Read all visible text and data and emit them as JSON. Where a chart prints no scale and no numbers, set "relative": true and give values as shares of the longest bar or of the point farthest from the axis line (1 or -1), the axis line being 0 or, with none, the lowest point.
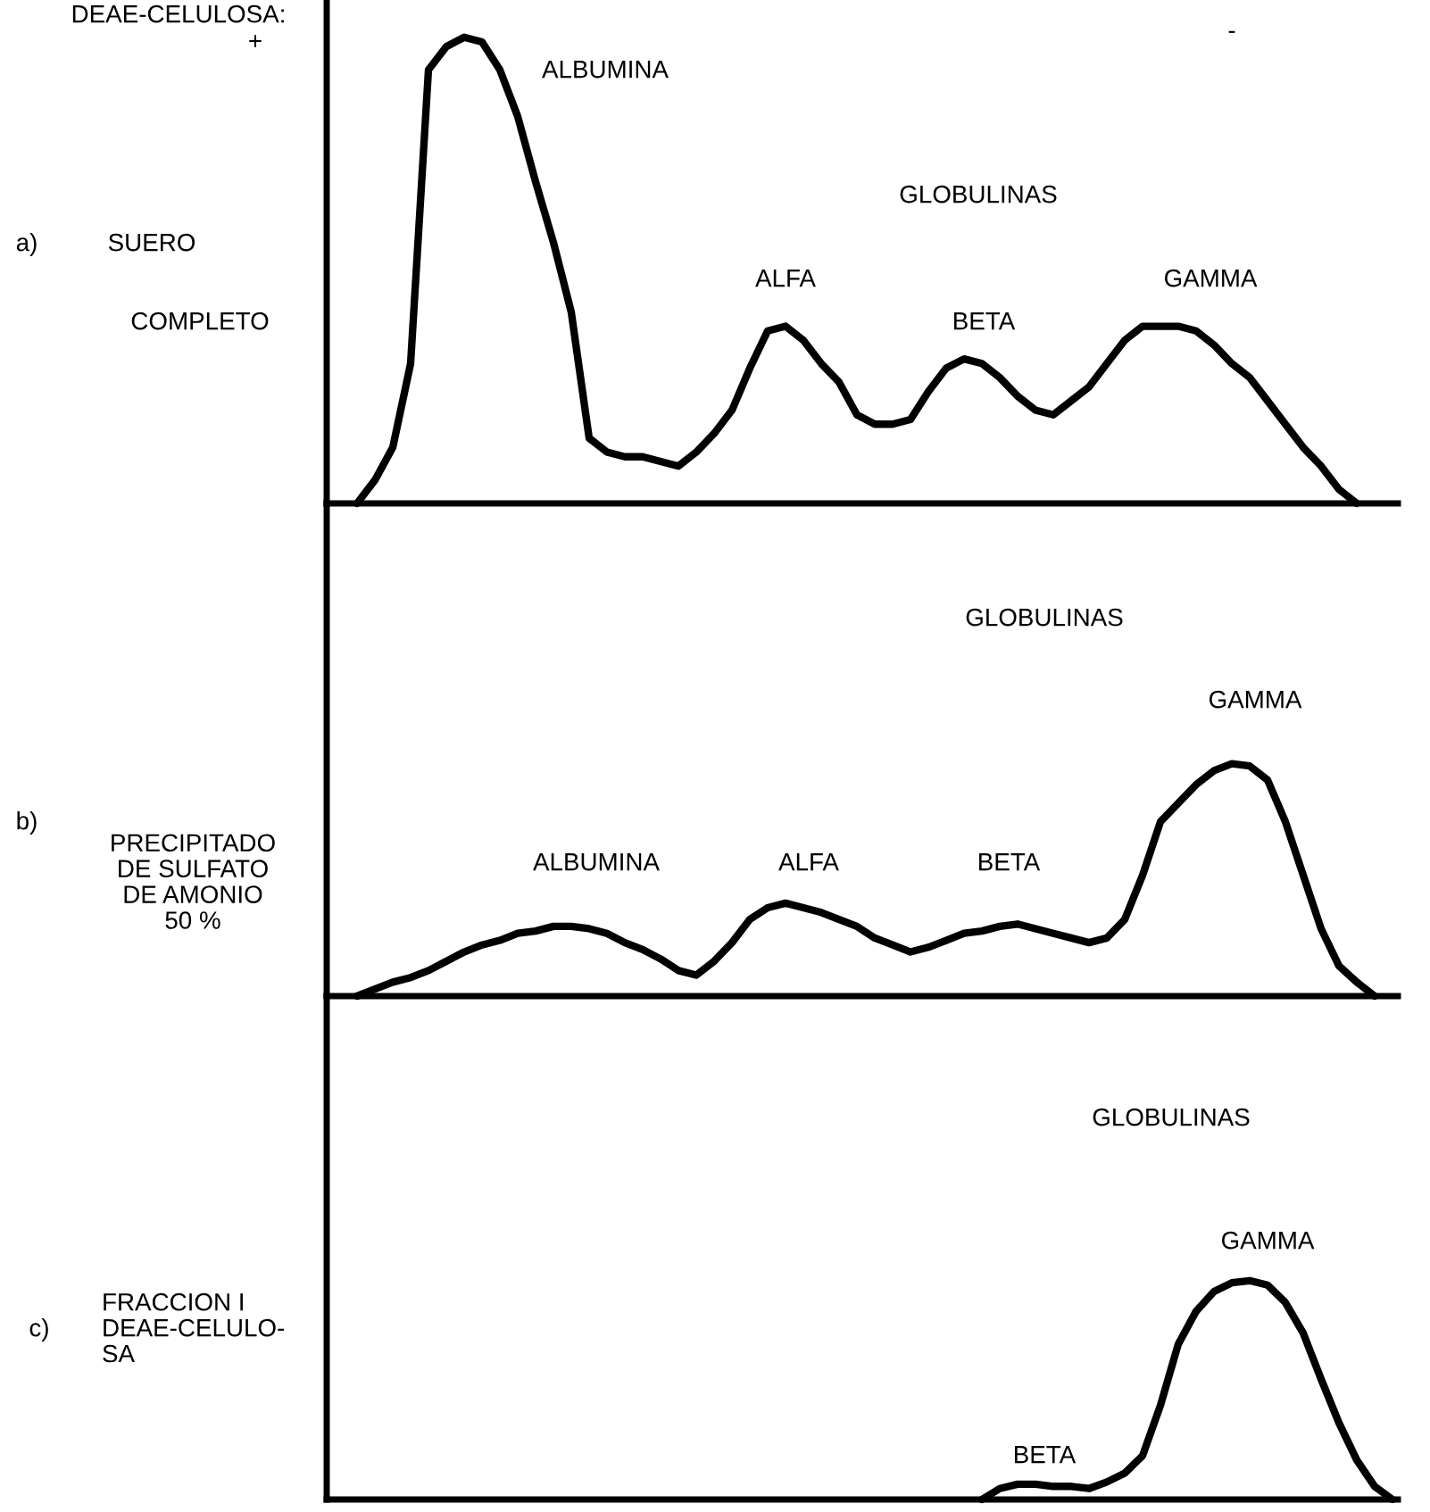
{
  "chart_data": [
    {
      "type": "line",
      "relative": true,
      "categories": [
        null,
        null,
        null,
        null,
        null,
        null,
        null,
        null,
        null,
        null,
        null,
        null,
        null,
        null,
        null,
        null,
        null,
        null,
        null,
        null,
        null,
        null,
        null,
        null,
        null,
        null,
        null,
        null,
        null,
        null,
        null,
        null,
        null,
        null,
        null,
        null,
        null,
        null,
        null,
        null,
        null,
        null,
        null,
        null,
        null,
        null,
        null,
        null,
        null,
        null,
        null,
        null,
        null,
        null,
        null,
        null,
        null,
        null,
        null,
        null
      ],
      "series": [
        {
          "color": "#000000",
          "values": [
            null,
            0,
            0.05,
            0.12,
            0.3,
            0.93,
            0.98,
            1.0,
            0.99,
            0.93,
            0.83,
            0.69,
            0.56,
            0.41,
            0.14,
            0.11,
            0.1,
            0.1,
            0.09,
            0.08,
            0.11,
            0.15,
            0.2,
            0.29,
            0.37,
            0.38,
            0.35,
            0.3,
            0.26,
            0.19,
            0.17,
            0.17,
            0.18,
            0.24,
            0.29,
            0.31,
            0.3,
            0.27,
            0.23,
            0.2,
            0.19,
            0.22,
            0.25,
            0.3,
            0.35,
            0.38,
            0.38,
            0.38,
            0.37,
            0.34,
            0.3,
            0.27,
            0.22,
            0.17,
            0.12,
            0.08,
            0.03,
            0,
            null,
            null
          ]
        }
      ],
      "annotations": [
        "DEAE-CELULOSA:",
        "+",
        "-",
        "ALBUMINA",
        "GLOBULINAS",
        "ALFA",
        "BETA",
        "GAMMA",
        "a)",
        "SUERO",
        "COMPLETO"
      ]
    },
    {
      "type": "line",
      "relative": true,
      "categories": [
        null,
        null,
        null,
        null,
        null,
        null,
        null,
        null,
        null,
        null,
        null,
        null,
        null,
        null,
        null,
        null,
        null,
        null,
        null,
        null,
        null,
        null,
        null,
        null,
        null,
        null,
        null,
        null,
        null,
        null,
        null,
        null,
        null,
        null,
        null,
        null,
        null,
        null,
        null,
        null,
        null,
        null,
        null,
        null,
        null,
        null,
        null,
        null,
        null,
        null,
        null,
        null,
        null,
        null,
        null,
        null,
        null,
        null,
        null,
        null
      ],
      "series": [
        {
          "color": "#000000",
          "values": [
            null,
            0,
            0.03,
            0.06,
            0.08,
            0.11,
            0.15,
            0.19,
            0.22,
            0.24,
            0.27,
            0.28,
            0.3,
            0.3,
            0.29,
            0.27,
            0.23,
            0.2,
            0.16,
            0.11,
            0.09,
            0.15,
            0.23,
            0.33,
            0.38,
            0.4,
            0.38,
            0.36,
            0.33,
            0.3,
            0.25,
            0.22,
            0.19,
            0.21,
            0.24,
            0.27,
            0.28,
            0.3,
            0.31,
            0.29,
            0.27,
            0.25,
            0.23,
            0.25,
            0.33,
            0.52,
            0.75,
            0.83,
            0.91,
            0.97,
            1.0,
            0.99,
            0.93,
            0.75,
            0.52,
            0.29,
            0.13,
            0.06,
            0,
            null
          ]
        }
      ],
      "annotations": [
        "GLOBULINAS",
        "GAMMA",
        "ALBUMINA",
        "ALFA",
        "BETA",
        "b)",
        "PRECIPITADO\nDE SULFATO\nDE AMONIO\n50 %"
      ]
    },
    {
      "type": "line",
      "relative": true,
      "categories": [
        null,
        null,
        null,
        null,
        null,
        null,
        null,
        null,
        null,
        null,
        null,
        null,
        null,
        null,
        null,
        null,
        null,
        null,
        null,
        null,
        null,
        null,
        null,
        null,
        null,
        null,
        null,
        null,
        null,
        null,
        null,
        null,
        null,
        null,
        null,
        null,
        null,
        null,
        null,
        null,
        null,
        null,
        null,
        null,
        null,
        null,
        null,
        null,
        null,
        null,
        null,
        null,
        null,
        null,
        null,
        null,
        null,
        null,
        null,
        null
      ],
      "series": [
        {
          "color": "#000000",
          "values": [
            null,
            null,
            null,
            null,
            null,
            null,
            null,
            null,
            null,
            null,
            null,
            null,
            null,
            null,
            null,
            null,
            null,
            null,
            null,
            null,
            null,
            null,
            null,
            null,
            null,
            null,
            null,
            null,
            null,
            null,
            null,
            null,
            null,
            null,
            null,
            null,
            0,
            0.05,
            0.07,
            0.07,
            0.06,
            0.06,
            0.05,
            0.08,
            0.12,
            0.2,
            0.43,
            0.71,
            0.86,
            0.95,
            0.99,
            1.0,
            0.98,
            0.9,
            0.76,
            0.55,
            0.35,
            0.18,
            0.06,
            0
          ]
        }
      ],
      "annotations": [
        "GLOBULINAS",
        "GAMMA",
        "BETA",
        "c)",
        "FRACCION I\nDEAE-CELULO-\nSA"
      ]
    }
  ]
}
